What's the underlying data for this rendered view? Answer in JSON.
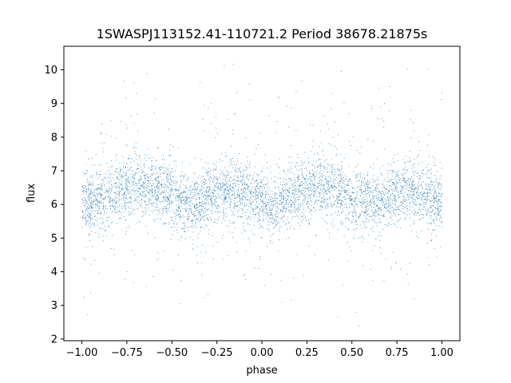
{
  "chart_data": {
    "type": "scatter",
    "title": "1SWASPJ113152.41-110721.2 Period 38678.21875s",
    "xlabel": "phase",
    "ylabel": "flux",
    "xlim": [
      -1.1,
      1.1
    ],
    "ylim": [
      1.95,
      10.7
    ],
    "xticks": [
      -1.0,
      -0.75,
      -0.5,
      -0.25,
      0.0,
      0.25,
      0.5,
      0.75,
      1.0
    ],
    "xtick_labels": [
      "−1.00",
      "−0.75",
      "−0.50",
      "−0.25",
      "0.00",
      "0.25",
      "0.50",
      "0.75",
      "1.00"
    ],
    "yticks": [
      2,
      3,
      4,
      5,
      6,
      7,
      8,
      9,
      10
    ],
    "ytick_labels": [
      "2",
      "3",
      "4",
      "5",
      "6",
      "7",
      "8",
      "9",
      "10"
    ],
    "grid": false,
    "legend": "none",
    "marker_color": "#1f77b4",
    "series": [
      {
        "profile": {
          "phase": [
            -1.0,
            -0.85,
            -0.7,
            -0.55,
            -0.4,
            -0.25,
            -0.15,
            -0.05,
            0.05,
            0.15,
            0.3,
            0.4,
            0.5,
            0.6,
            0.7,
            0.8,
            0.9,
            1.0
          ],
          "mean_flux": [
            6.0,
            6.3,
            6.6,
            6.4,
            6.0,
            6.3,
            6.5,
            6.2,
            5.9,
            6.2,
            6.6,
            6.5,
            6.1,
            6.0,
            6.2,
            6.5,
            6.3,
            6.1
          ],
          "core_spread": 0.45,
          "flux_range": [
            2.3,
            10.3
          ]
        }
      }
    ]
  }
}
